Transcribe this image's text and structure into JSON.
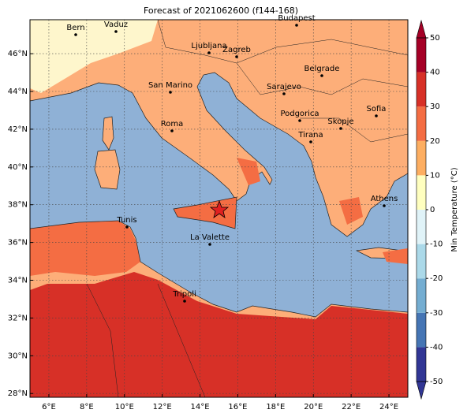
{
  "title": "Forecast of 2021062600 (f144-168)",
  "map": {
    "lonlim": [
      5,
      25
    ],
    "latlim": [
      27.8,
      47.8
    ],
    "lon_ticks": [
      {
        "value": 6,
        "label": "6°E"
      },
      {
        "value": 8,
        "label": "8°E"
      },
      {
        "value": 10,
        "label": "10°E"
      },
      {
        "value": 12,
        "label": "12°E"
      },
      {
        "value": 14,
        "label": "14°E"
      },
      {
        "value": 16,
        "label": "16°E"
      },
      {
        "value": 18,
        "label": "18°E"
      },
      {
        "value": 20,
        "label": "20°E"
      },
      {
        "value": 22,
        "label": "22°E"
      },
      {
        "value": 24,
        "label": "24°E"
      }
    ],
    "lat_ticks": [
      {
        "value": 28,
        "label": "28°N"
      },
      {
        "value": 30,
        "label": "30°N"
      },
      {
        "value": 32,
        "label": "32°N"
      },
      {
        "value": 34,
        "label": "34°N"
      },
      {
        "value": 36,
        "label": "36°N"
      },
      {
        "value": 38,
        "label": "38°N"
      },
      {
        "value": 40,
        "label": "40°N"
      },
      {
        "value": 42,
        "label": "42°N"
      },
      {
        "value": 44,
        "label": "44°N"
      },
      {
        "value": 46,
        "label": "46°N"
      }
    ],
    "cities": [
      "Bern",
      "Vaduz",
      "Budapest",
      "Ljubljana",
      "Zagreb",
      "Belgrade",
      "San Marino",
      "Sarajevo",
      "Sofia",
      "Podgorica",
      "Skopje",
      "Roma",
      "Tirana",
      "Athens",
      "Tunis",
      "La Valette",
      "Tripoli"
    ]
  },
  "colorbar": {
    "label": "Min Temperature (°C)",
    "ticks": [
      -50,
      -40,
      -30,
      -20,
      -10,
      0,
      10,
      20,
      30,
      40,
      50
    ],
    "colors": [
      "#313695",
      "#4575b4",
      "#74add1",
      "#abd9e9",
      "#e0f3f8",
      "#ffffbf",
      "#fdae61",
      "#f46d43",
      "#d73027",
      "#a50026"
    ]
  }
}
